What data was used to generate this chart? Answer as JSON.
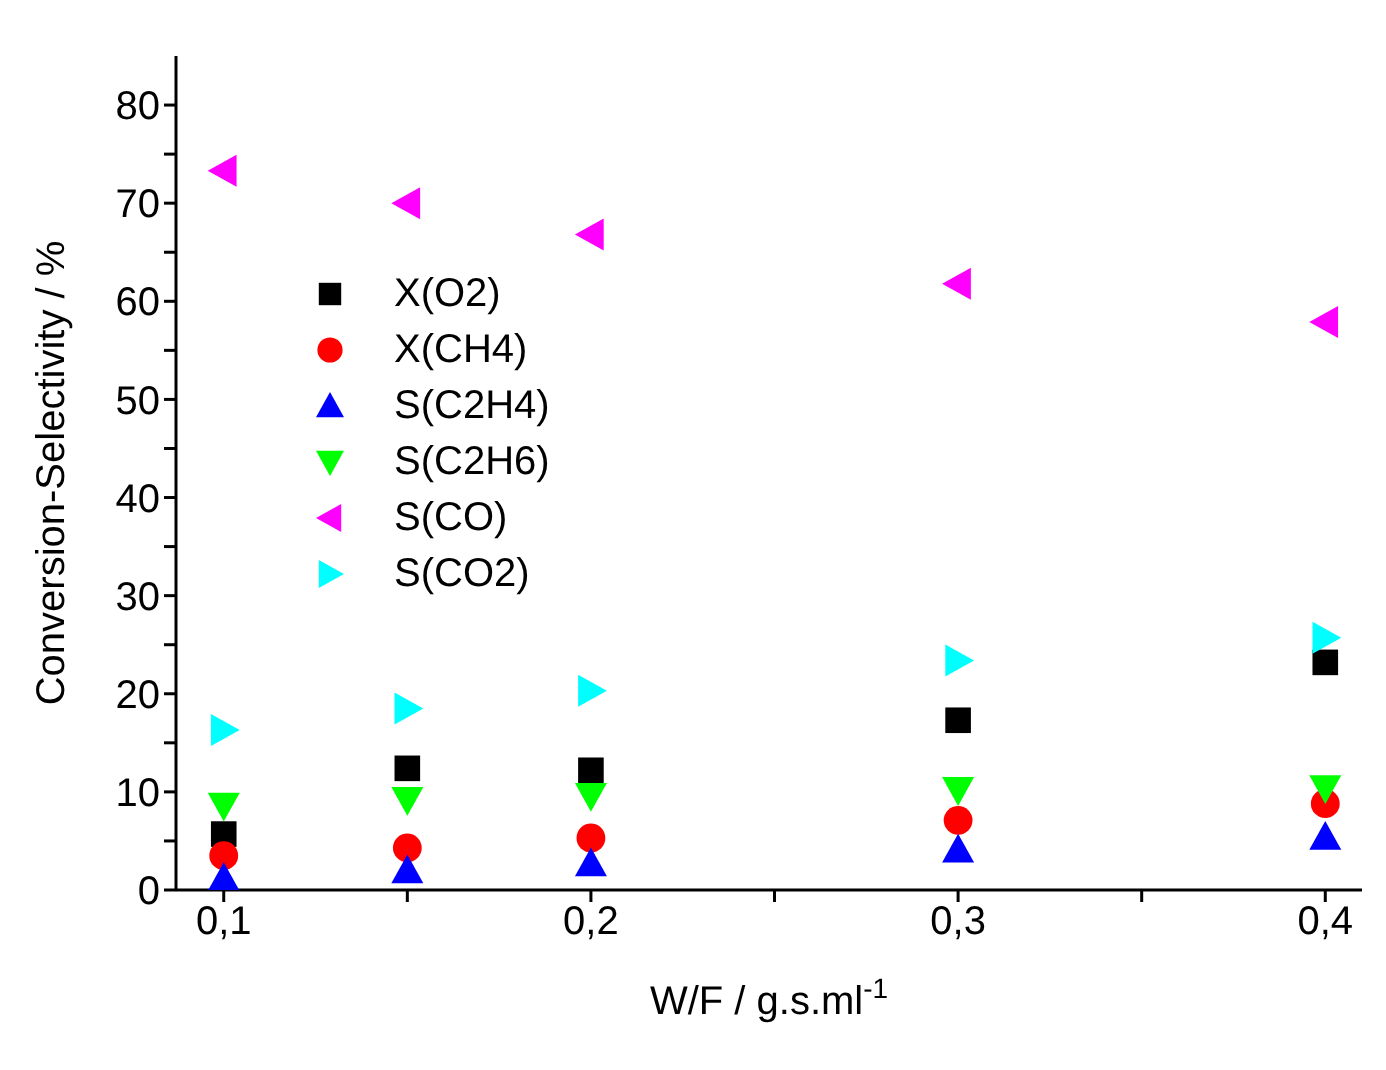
{
  "chart_data": {
    "type": "scatter",
    "xlabel": "W/F / g.s.ml$^{-1}$",
    "ylabel": "Conversion-Selectivity / %",
    "x": [
      0.1,
      0.15,
      0.2,
      0.3,
      0.4
    ],
    "series": [
      {
        "name": "X(O2)",
        "color": "#000000",
        "marker": "square",
        "values": [
          5.7,
          12.4,
          12.2,
          17.3,
          23.2
        ]
      },
      {
        "name": "X(CH4)",
        "color": "#ff0000",
        "marker": "circle",
        "values": [
          3.5,
          4.3,
          5.3,
          7.1,
          8.8
        ]
      },
      {
        "name": "S(C2H4)",
        "color": "#0000ff",
        "marker": "triangle",
        "values": [
          1.2,
          2.0,
          2.7,
          4.1,
          5.4
        ]
      },
      {
        "name": "S(C2H6)",
        "color": "#00ff00",
        "marker": "triangle-down",
        "values": [
          8.6,
          9.2,
          9.6,
          10.2,
          10.4
        ]
      },
      {
        "name": "S(CO)",
        "color": "#ff00ff",
        "marker": "triangle-left",
        "values": [
          73.3,
          70.0,
          66.8,
          61.8,
          57.9
        ]
      },
      {
        "name": "S(CO2)",
        "color": "#00ffff",
        "marker": "triangle-right",
        "values": [
          16.3,
          18.5,
          20.3,
          23.4,
          25.7
        ]
      }
    ],
    "xlim": [
      0.087,
      0.41
    ],
    "xticks": [
      {
        "value": 0.1,
        "label": "0,1"
      },
      {
        "value": 0.15,
        "label": null
      },
      {
        "value": 0.2,
        "label": "0,2"
      },
      {
        "value": 0.25,
        "label": null
      },
      {
        "value": 0.3,
        "label": "0,3"
      },
      {
        "value": 0.35,
        "label": null
      },
      {
        "value": 0.4,
        "label": "0,4"
      }
    ],
    "ylim": [
      0,
      85
    ],
    "yticks": [
      0,
      {
        "value": 5,
        "label": null
      },
      10,
      {
        "value": 15,
        "label": null
      },
      20,
      {
        "value": 25,
        "label": null
      },
      30,
      {
        "value": 35,
        "label": null
      },
      40,
      {
        "value": 45,
        "label": null
      },
      50,
      {
        "value": 55,
        "label": null
      },
      60,
      {
        "value": 65,
        "label": null
      },
      70,
      {
        "value": 75,
        "label": null
      },
      80
    ],
    "grid": false,
    "legend": "top left"
  }
}
